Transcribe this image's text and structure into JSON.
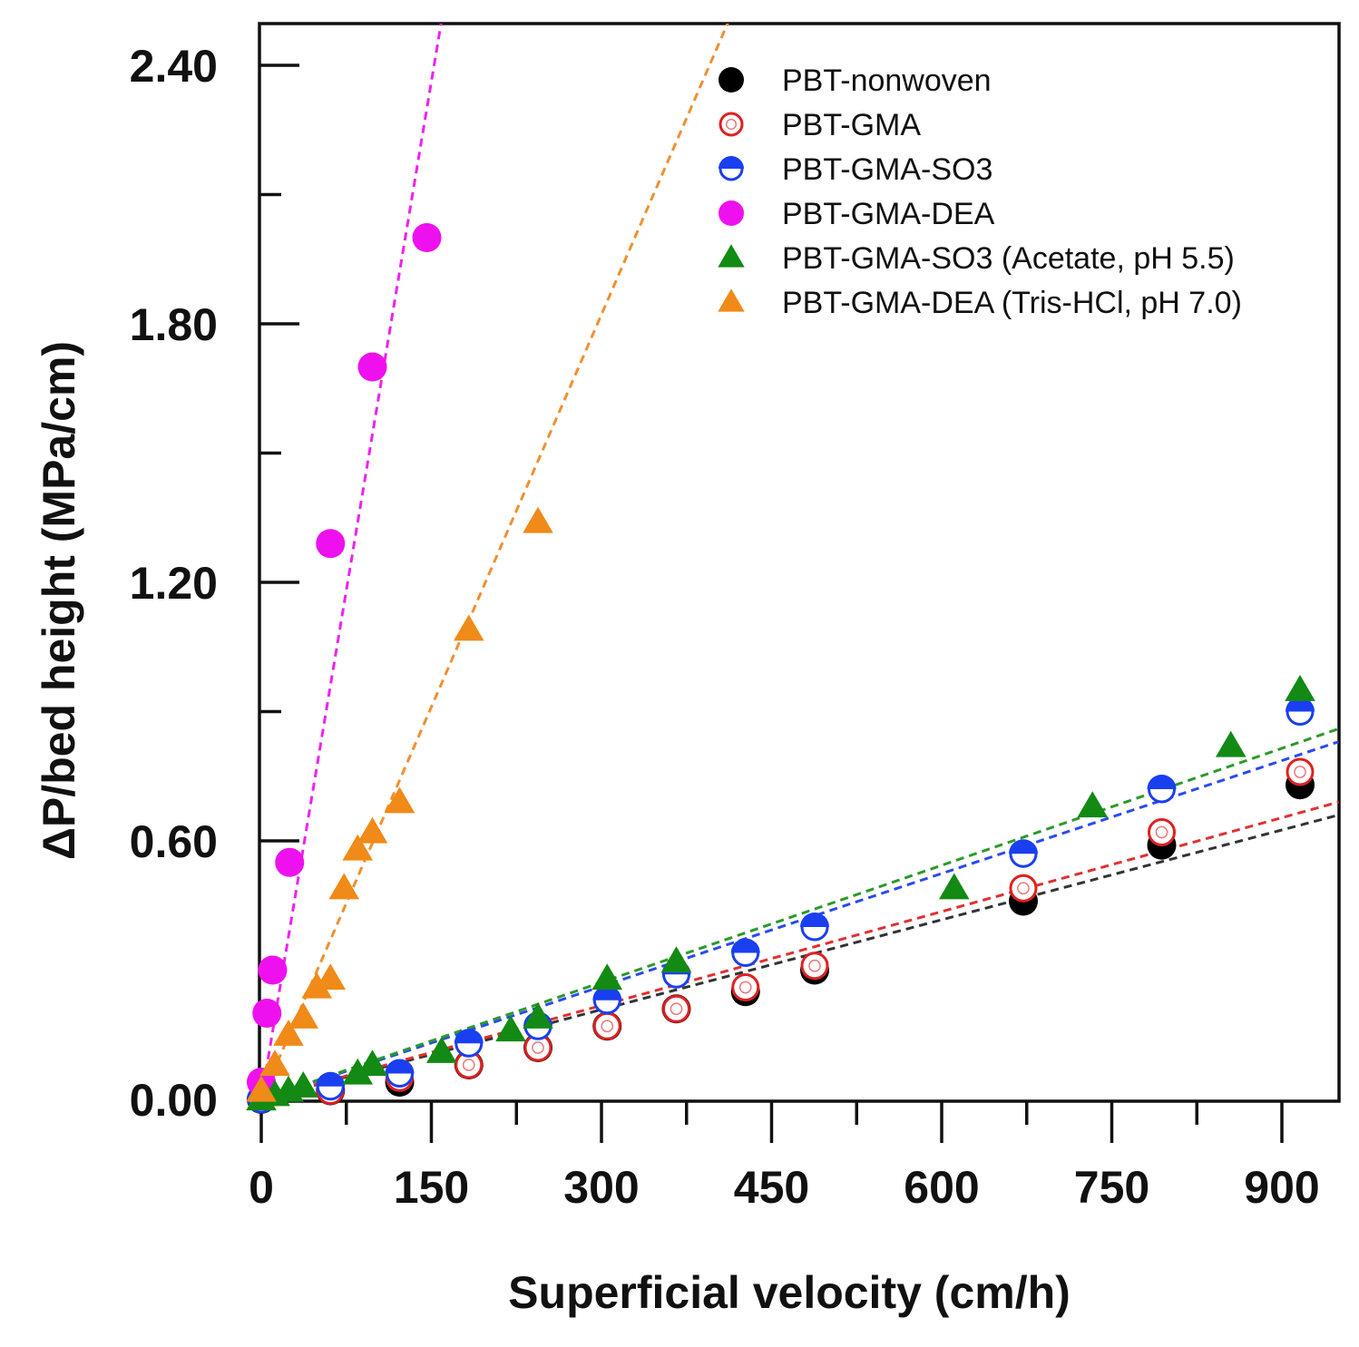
{
  "chart_data": {
    "type": "scatter",
    "title": "",
    "xlabel": "Superficial velocity (cm/h)",
    "ylabel": "ΔP/bed height (MPa/cm)",
    "xlim": [
      0,
      950
    ],
    "ylim": [
      0,
      2.52
    ],
    "x_ticks": [
      0,
      150,
      300,
      450,
      600,
      750,
      900
    ],
    "x_tick_labels": [
      "0",
      "150",
      "300",
      "450",
      "600",
      "750",
      "900"
    ],
    "y_ticks": [
      0,
      0.6,
      1.2,
      1.8,
      2.4
    ],
    "y_tick_labels": [
      "0.00",
      "0.60",
      "1.20",
      "1.80",
      "2.40"
    ],
    "legend_position": "top-right",
    "series": [
      {
        "name": "PBT-nonwoven",
        "marker": "filled-circle",
        "color": "#000000",
        "fit_color": "#333333",
        "x": [
          0,
          61,
          122,
          183,
          244,
          305,
          366,
          427,
          488,
          672,
          794,
          916
        ],
        "y": [
          0,
          0.02,
          0.04,
          0.08,
          0.12,
          0.17,
          0.21,
          0.25,
          0.3,
          0.46,
          0.59,
          0.73
        ],
        "fit": [
          [
            0,
            0
          ],
          [
            950,
            0.66
          ]
        ]
      },
      {
        "name": "PBT-GMA",
        "marker": "open-circle",
        "color": "#e02020",
        "fit_color": "#e03030",
        "x": [
          0,
          61,
          122,
          183,
          244,
          305,
          366,
          427,
          488,
          672,
          794,
          916
        ],
        "y": [
          0,
          0.02,
          0.05,
          0.08,
          0.12,
          0.17,
          0.21,
          0.26,
          0.31,
          0.49,
          0.62,
          0.76
        ],
        "fit": [
          [
            0,
            0
          ],
          [
            950,
            0.69
          ]
        ]
      },
      {
        "name": "PBT-GMA-SO3",
        "marker": "half-filled-circle",
        "color": "#1a3ff0",
        "fit_color": "#2a4af0",
        "x": [
          0,
          61,
          122,
          183,
          244,
          305,
          366,
          427,
          488,
          672,
          794,
          916
        ],
        "y": [
          0,
          0.03,
          0.06,
          0.13,
          0.17,
          0.23,
          0.29,
          0.34,
          0.4,
          0.57,
          0.72,
          0.9
        ],
        "fit": [
          [
            0,
            0
          ],
          [
            950,
            0.83
          ]
        ]
      },
      {
        "name": "PBT-GMA-DEA",
        "marker": "filled-circle",
        "color": "#ee10ee",
        "fit_color": "#ee22ee",
        "x": [
          0,
          5,
          10,
          25,
          61,
          98,
          146
        ],
        "y": [
          0.04,
          0.2,
          0.3,
          0.55,
          1.29,
          1.7,
          2.0
        ],
        "fit": [
          [
            0,
            0
          ],
          [
            160,
            2.52
          ]
        ]
      },
      {
        "name": "PBT-GMA-SO3 (Acetate, pH 5.5)",
        "marker": "filled-triangle",
        "color": "#138a13",
        "fit_color": "#2a9a2a",
        "x": [
          0,
          12,
          24,
          37,
          85,
          98,
          159,
          220,
          244,
          305,
          366,
          611,
          733,
          855,
          916
        ],
        "y": [
          0,
          0.01,
          0.02,
          0.03,
          0.06,
          0.08,
          0.11,
          0.16,
          0.19,
          0.28,
          0.32,
          0.49,
          0.68,
          0.82,
          0.95
        ],
        "fit": [
          [
            0,
            0
          ],
          [
            950,
            0.86
          ]
        ]
      },
      {
        "name": "PBT-GMA-DEA (Tris-HCl, pH 7.0)",
        "marker": "filled-triangle",
        "color": "#f08a18",
        "fit_color": "#f09030",
        "x": [
          0,
          12,
          24,
          37,
          49,
          61,
          73,
          85,
          98,
          122,
          183,
          244
        ],
        "y": [
          0.02,
          0.08,
          0.15,
          0.19,
          0.26,
          0.28,
          0.49,
          0.58,
          0.62,
          0.69,
          1.09,
          1.34
        ],
        "fit": [
          [
            0,
            0
          ],
          [
            415,
            2.52
          ]
        ]
      }
    ]
  }
}
